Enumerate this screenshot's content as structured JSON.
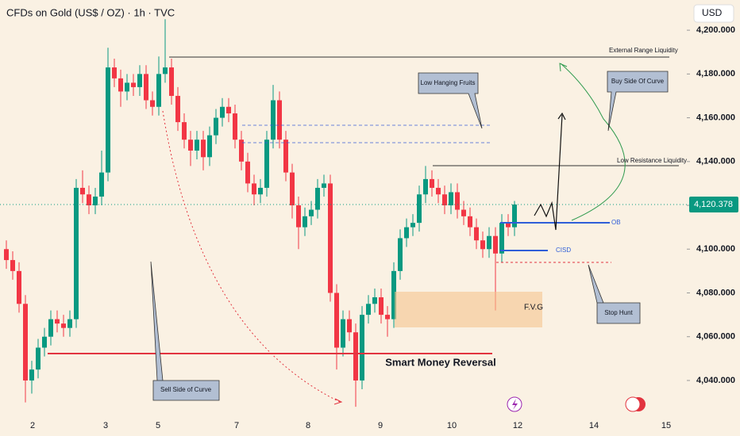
{
  "chart_data": {
    "type": "candlestick",
    "title": "CFDs on Gold (US$ / OZ) · 1h · TVC",
    "currency": "USD",
    "up_color": "#089981",
    "down_color": "#f23645",
    "open": [
      4100,
      4095,
      4090,
      4075,
      4040,
      4045,
      4055,
      4060,
      4068,
      4066,
      4064,
      4068,
      4128,
      4125,
      4120,
      4124,
      4135,
      4183,
      4178,
      4172,
      4176,
      4174,
      4180,
      4168,
      4165,
      4180,
      4183,
      4170,
      4158,
      4150,
      4145,
      4150,
      4142,
      4152,
      4160,
      4165,
      4162,
      4150,
      4140,
      4130,
      4125,
      4128,
      4150,
      4168,
      4150,
      4135,
      4120,
      4110,
      4115,
      4118,
      4128,
      4130,
      4080,
      4055,
      4068,
      4062,
      4040,
      4070,
      4075,
      4078,
      4070,
      4068,
      4090,
      4105,
      4110,
      4112,
      4125,
      4132,
      4128,
      4125,
      4120,
      4126,
      4118,
      4115,
      4110,
      4104,
      4100,
      4106,
      4098,
      4112,
      4110
    ],
    "high": [
      4104,
      4099,
      4094,
      4079,
      4049,
      4059,
      4064,
      4072,
      4072,
      4070,
      4072,
      4132,
      4136,
      4129,
      4128,
      4145,
      4192,
      4187,
      4182,
      4180,
      4180,
      4184,
      4184,
      4172,
      4188,
      4205,
      4187,
      4174,
      4162,
      4154,
      4154,
      4154,
      4156,
      4164,
      4169,
      4169,
      4166,
      4154,
      4144,
      4134,
      4132,
      4154,
      4175,
      4172,
      4154,
      4139,
      4124,
      4119,
      4122,
      4132,
      4134,
      4134,
      4084,
      4072,
      4072,
      4066,
      4074,
      4079,
      4082,
      4082,
      4074,
      4094,
      4109,
      4114,
      4116,
      4129,
      4138,
      4136,
      4132,
      4129,
      4130,
      4130,
      4122,
      4119,
      4114,
      4108,
      4110,
      4110,
      4116,
      4116,
      4122
    ],
    "low": [
      4091,
      4086,
      4071,
      4030,
      4034,
      4041,
      4051,
      4056,
      4062,
      4060,
      4060,
      4064,
      4121,
      4116,
      4116,
      4120,
      4131,
      4174,
      4165,
      4168,
      4170,
      4170,
      4164,
      4161,
      4161,
      4176,
      4166,
      4154,
      4146,
      4138,
      4141,
      4136,
      4138,
      4148,
      4156,
      4158,
      4146,
      4136,
      4126,
      4120,
      4121,
      4124,
      4146,
      4146,
      4131,
      4114,
      4100,
      4106,
      4111,
      4114,
      4124,
      4076,
      4045,
      4051,
      4058,
      4028,
      4036,
      4066,
      4071,
      4066,
      4060,
      4064,
      4086,
      4101,
      4106,
      4108,
      4121,
      4124,
      4121,
      4116,
      4116,
      4114,
      4111,
      4106,
      4100,
      4096,
      4096,
      4072,
      4094,
      4106,
      4106
    ],
    "close": [
      4095,
      4090,
      4075,
      4040,
      4045,
      4055,
      4060,
      4068,
      4066,
      4064,
      4068,
      4128,
      4125,
      4120,
      4124,
      4135,
      4183,
      4178,
      4172,
      4176,
      4174,
      4180,
      4168,
      4165,
      4180,
      4183,
      4170,
      4158,
      4150,
      4145,
      4150,
      4142,
      4152,
      4160,
      4165,
      4162,
      4150,
      4140,
      4130,
      4125,
      4128,
      4150,
      4168,
      4150,
      4135,
      4120,
      4110,
      4115,
      4118,
      4128,
      4130,
      4080,
      4055,
      4068,
      4062,
      4040,
      4070,
      4075,
      4078,
      4070,
      4068,
      4090,
      4105,
      4110,
      4112,
      4125,
      4132,
      4128,
      4125,
      4120,
      4126,
      4118,
      4115,
      4110,
      4104,
      4100,
      4106,
      4098,
      4112,
      4110,
      4120.378
    ],
    "last_price": {
      "value": 4120.378,
      "label": "4,120.378"
    },
    "ylim": [
      4025.5,
      4213.8
    ],
    "yticks": [
      {
        "value": 4040,
        "label": "4,040.000"
      },
      {
        "value": 4060,
        "label": "4,060.000"
      },
      {
        "value": 4080,
        "label": "4,080.000"
      },
      {
        "value": 4100,
        "label": "4,100.000"
      },
      {
        "value": 4120,
        "label": "4,120.000"
      },
      {
        "value": 4140,
        "label": "4,140.000"
      },
      {
        "value": 4160,
        "label": "4,160.000"
      },
      {
        "value": 4180,
        "label": "4,180.000"
      },
      {
        "value": 4200,
        "label": "4,200.000"
      }
    ],
    "x_labels": [
      "2",
      "3",
      "5",
      "7",
      "8",
      "9",
      "10",
      "12",
      "14",
      "15"
    ],
    "annotations": [
      "External Range Liquidity",
      "Low Hanging Fruits",
      "Buy Side Of Curve",
      "Low Resistance Liquidity",
      "OB",
      "CISD",
      "F.V.G",
      "Stop Hunt",
      "Smart Money Reversal",
      "Sell Side of Curve"
    ]
  }
}
